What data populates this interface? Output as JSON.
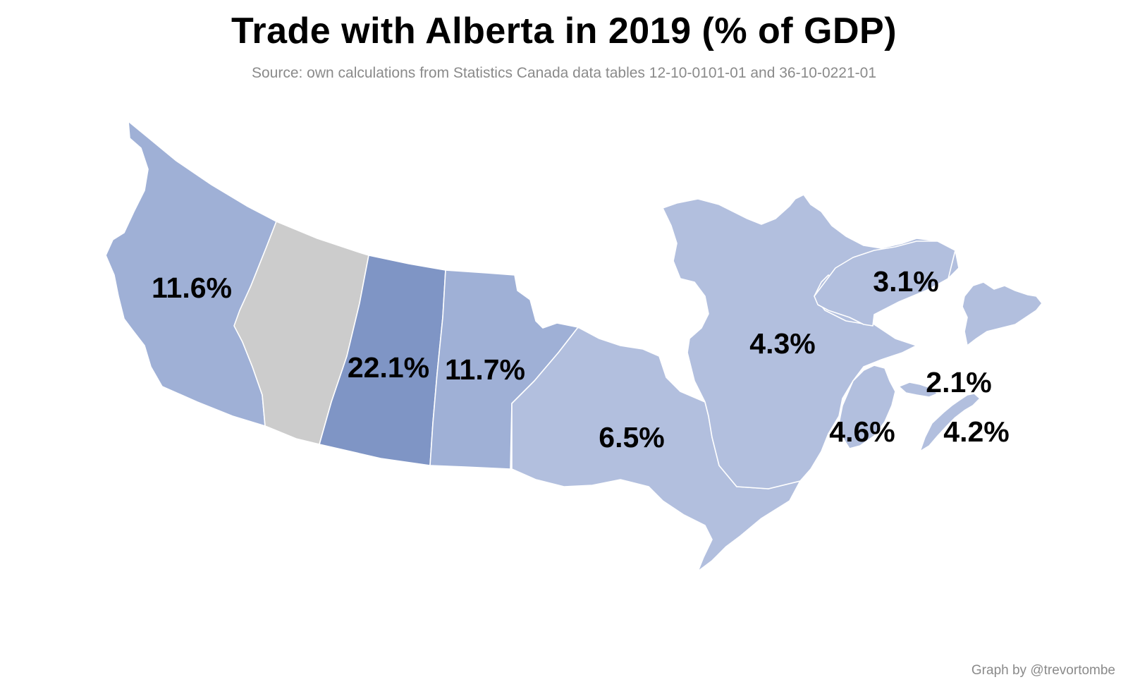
{
  "title": "Trade with Alberta in 2019 (% of GDP)",
  "subtitle": "Source: own calculations from Statistics Canada data tables 12-10-0101-01 and 36-10-0221-01",
  "credit": "Graph by @trevortombe",
  "colors": {
    "alberta": "#cccccc",
    "saskatchewan": "#7f95c5",
    "bc_manitoba": "#9fb0d6",
    "east": "#b2bfde",
    "border": "#ffffff"
  },
  "provinces": [
    {
      "id": "bc",
      "name": "British Columbia",
      "label": "11.6%",
      "value": 11.6
    },
    {
      "id": "ab",
      "name": "Alberta",
      "label": "",
      "value": null
    },
    {
      "id": "sk",
      "name": "Saskatchewan",
      "label": "22.1%",
      "value": 22.1
    },
    {
      "id": "mb",
      "name": "Manitoba",
      "label": "11.7%",
      "value": 11.7
    },
    {
      "id": "on",
      "name": "Ontario",
      "label": "6.5%",
      "value": 6.5
    },
    {
      "id": "qc",
      "name": "Quebec",
      "label": "4.3%",
      "value": 4.3
    },
    {
      "id": "nl",
      "name": "Newfoundland and Labrador",
      "label": "3.1%",
      "value": 3.1
    },
    {
      "id": "pe",
      "name": "Prince Edward Island",
      "label": "2.1%",
      "value": 2.1
    },
    {
      "id": "nb",
      "name": "New Brunswick",
      "label": "4.6%",
      "value": 4.6
    },
    {
      "id": "ns",
      "name": "Nova Scotia",
      "label": "4.2%",
      "value": 4.2
    }
  ]
}
